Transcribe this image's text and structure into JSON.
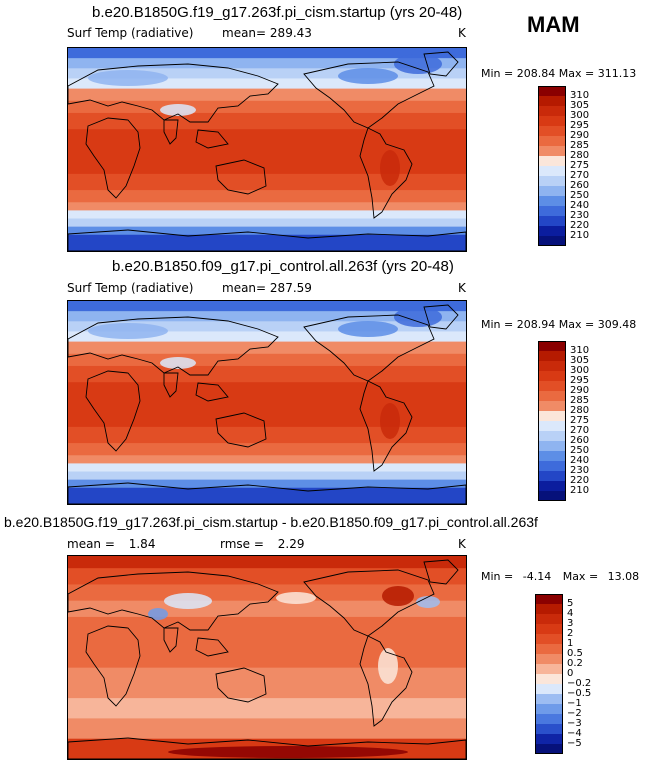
{
  "season": "MAM",
  "panels": [
    {
      "title": "b.e20.B1850G.f19_g17.263f.pi_cism.startup (yrs 20-48)",
      "left_label": "Surf Temp (radiative)",
      "center_label": "mean=",
      "center_value": "289.43",
      "units": "K",
      "min_label": "Min =",
      "min_value": "208.84",
      "max_label": "Max =",
      "max_value": "311.13",
      "colorbar": {
        "labels": [
          "310",
          "305",
          "300",
          "295",
          "290",
          "285",
          "280",
          "275",
          "270",
          "260",
          "250",
          "240",
          "230",
          "220",
          "210"
        ],
        "colors": [
          "#8a0000",
          "#b51a00",
          "#c92a0a",
          "#d83a14",
          "#e24f26",
          "#ea6a40",
          "#f08b66",
          "#fbe6da",
          "#dbe8fb",
          "#b9d1f6",
          "#8fb4f0",
          "#5d8ee6",
          "#3e6bdb",
          "#2346c6",
          "#0b1d9e",
          "#06117a"
        ]
      }
    },
    {
      "title": "b.e20.B1850.f09_g17.pi_control.all.263f (yrs 20-48)",
      "left_label": "Surf Temp (radiative)",
      "center_label": "mean=",
      "center_value": "287.59",
      "units": "K",
      "min_label": "Min =",
      "min_value": "208.94",
      "max_label": "Max =",
      "max_value": "309.48",
      "colorbar": {
        "labels": [
          "310",
          "305",
          "300",
          "295",
          "290",
          "285",
          "280",
          "275",
          "270",
          "260",
          "250",
          "240",
          "230",
          "220",
          "210"
        ],
        "colors": [
          "#8a0000",
          "#b51a00",
          "#c92a0a",
          "#d83a14",
          "#e24f26",
          "#ea6a40",
          "#f08b66",
          "#fbe6da",
          "#dbe8fb",
          "#b9d1f6",
          "#8fb4f0",
          "#5d8ee6",
          "#3e6bdb",
          "#2346c6",
          "#0b1d9e",
          "#06117a"
        ]
      }
    },
    {
      "title": "b.e20.B1850G.f19_g17.263f.pi_cism.startup - b.e20.B1850.f09_g17.pi_control.all.263f",
      "left_label": "mean =",
      "left_value": "1.84",
      "center_label": "rmse =",
      "center_value": "2.29",
      "units": "K",
      "min_label": "Min =",
      "min_value": "-4.14",
      "max_label": "Max =",
      "max_value": "13.08",
      "colorbar": {
        "labels": [
          "5",
          "4",
          "3",
          "2",
          "1",
          "0.5",
          "0.2",
          "0",
          "−0.2",
          "−0.5",
          "−1",
          "−2",
          "−3",
          "−4",
          "−5"
        ],
        "colors": [
          "#8a0000",
          "#b51a00",
          "#c92a0a",
          "#d83a14",
          "#e24f26",
          "#ea6a40",
          "#f08b66",
          "#f7b59a",
          "#fbe6da",
          "#dbe8fb",
          "#9dbdf2",
          "#6f9be9",
          "#4a78df",
          "#2a50cb",
          "#0f24a6",
          "#06117a"
        ]
      }
    }
  ]
}
